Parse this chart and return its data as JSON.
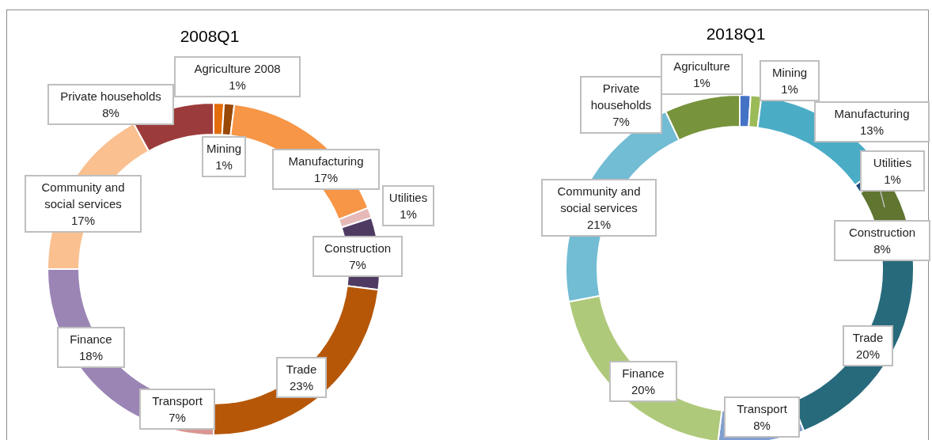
{
  "chart_data": [
    {
      "type": "donut",
      "title": "2008Q1",
      "categories": [
        "Agriculture 2008",
        "Mining",
        "Manufacturing",
        "Utilities",
        "Construction",
        "Trade",
        "Transport",
        "Finance",
        "Community and social services",
        "Private households"
      ],
      "values": [
        1,
        1,
        17,
        1,
        7,
        23,
        7,
        18,
        17,
        8
      ],
      "value_labels": [
        "1%",
        "1%",
        "17%",
        "1%",
        "7%",
        "23%",
        "7%",
        "18%",
        "17%",
        "8%"
      ],
      "colors": [
        "#e46c0a",
        "#984807",
        "#f79646",
        "#e6b9b8",
        "#4f3b62",
        "#b65708",
        "#d99694",
        "#9b85b5",
        "#fac090",
        "#9c3b3b"
      ],
      "legend": false
    },
    {
      "type": "donut",
      "title": "2018Q1",
      "categories": [
        "Agriculture",
        "Mining",
        "Manufacturing",
        "Utilities",
        "Construction",
        "Trade",
        "Transport",
        "Finance",
        "Community and social services",
        "Private households"
      ],
      "values": [
        1,
        1,
        13,
        1,
        8,
        20,
        8,
        20,
        21,
        7
      ],
      "value_labels": [
        "1%",
        "1%",
        "13%",
        "1%",
        "8%",
        "20%",
        "8%",
        "20%",
        "21%",
        "7%"
      ],
      "colors": [
        "#4472c4",
        "#9bbb59",
        "#4bacc6",
        "#1f497d",
        "#5f7530",
        "#276a7c",
        "#7f9fd0",
        "#afc97a",
        "#72bcd4",
        "#77933c"
      ],
      "legend": false
    }
  ]
}
